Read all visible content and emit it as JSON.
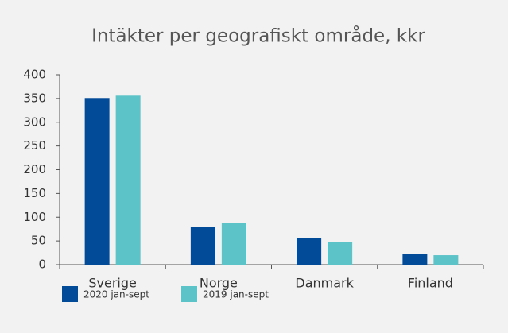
{
  "chart_data": {
    "type": "bar",
    "title": "Intäkter per geografiskt område, kkr",
    "categories": [
      "Sverige",
      "Norge",
      "Danmark",
      "Finland"
    ],
    "series": [
      {
        "name": "2020 jan-sept",
        "color": "#024b98",
        "values": [
          351,
          80,
          56,
          22
        ]
      },
      {
        "name": "2019 jan-sept",
        "color": "#5cc3c8",
        "values": [
          356,
          88,
          48,
          20
        ]
      }
    ],
    "ylim": [
      0,
      400
    ],
    "yticks": [
      0,
      50,
      100,
      150,
      200,
      250,
      300,
      350,
      400
    ],
    "grid": false
  }
}
